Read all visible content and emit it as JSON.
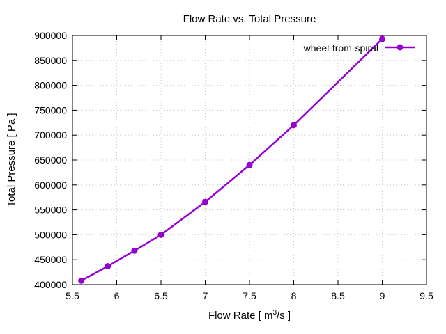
{
  "chart_data": {
    "type": "line",
    "title": "Flow Rate vs. Total Pressure",
    "xlabel_main": "Flow Rate [ m",
    "xlabel_sup": "3",
    "xlabel_tail": "/s ]",
    "ylabel": "Total Pressure [ Pa ]",
    "xlim": [
      5.5,
      9.5
    ],
    "ylim": [
      400000,
      900000
    ],
    "xticks": [
      "5.5",
      "6",
      "6.5",
      "7",
      "7.5",
      "8",
      "8.5",
      "9",
      "9.5"
    ],
    "yticks": [
      "400000",
      "450000",
      "500000",
      "550000",
      "600000",
      "650000",
      "700000",
      "750000",
      "800000",
      "850000",
      "900000"
    ],
    "grid": true,
    "legend_position": "top-right",
    "series": [
      {
        "name": "wheel-from-spiral",
        "color": "#9400d3",
        "x": [
          5.6,
          5.9,
          6.2,
          6.5,
          7.0,
          7.5,
          8.0,
          9.0
        ],
        "y": [
          408000,
          437000,
          468000,
          500000,
          566000,
          640000,
          720000,
          893000
        ]
      }
    ]
  }
}
